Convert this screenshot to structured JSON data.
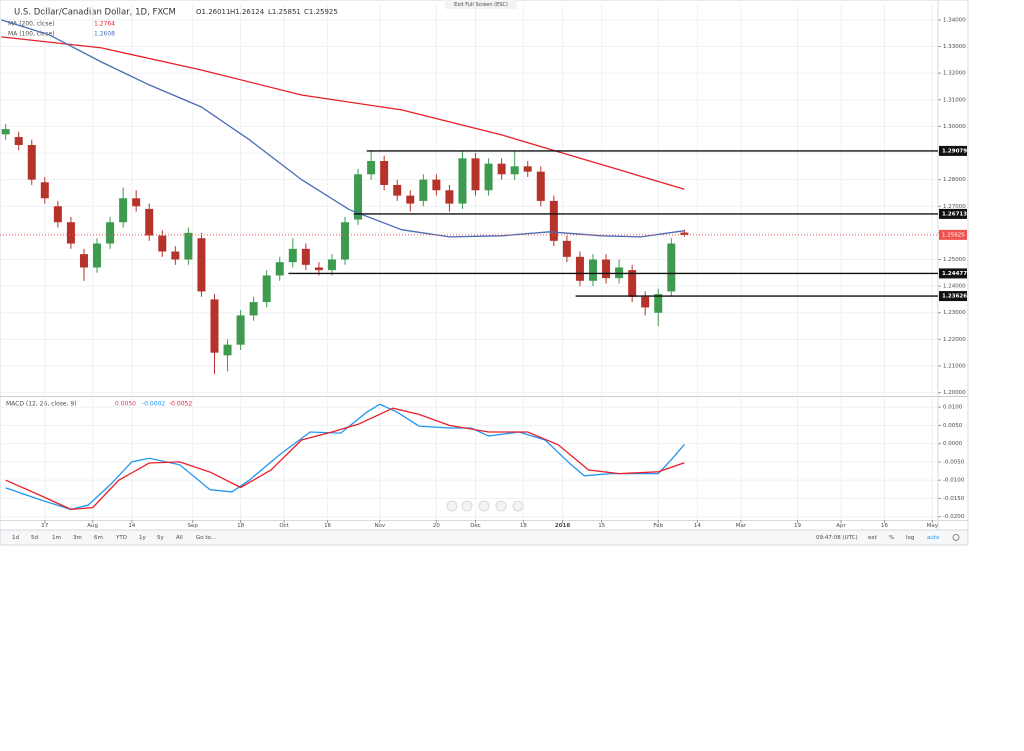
{
  "ui": {
    "exit_fullscreen": "Exit Full Screen (ESC)",
    "ranges": [
      "1d",
      "5d",
      "1m",
      "3m",
      "6m",
      "YTD",
      "1y",
      "5y",
      "All",
      "Go to..."
    ],
    "clock": "09:47:08 (UTC)",
    "toggles": [
      "ext",
      "%",
      "log",
      "auto"
    ]
  },
  "chart_data": [
    {
      "type": "candlestick",
      "title": "U.S. Dollar/Canadian Dollar, 1D, FXCM",
      "ohlc_labels": [
        "O1.26011",
        "H1.26124",
        "L1.25851",
        "C1.25925"
      ],
      "up_color": "#3d9a4f",
      "down_color": "#b5332a",
      "x": [
        -9,
        -6,
        -3,
        0,
        3,
        6,
        9,
        12,
        15,
        18,
        21,
        24,
        27,
        30,
        33,
        36,
        39,
        42,
        45,
        48,
        51,
        54,
        57,
        60,
        63,
        66,
        69,
        72,
        75,
        78,
        81,
        84,
        87,
        90,
        93,
        96,
        99,
        102,
        105,
        108,
        111,
        114,
        117,
        120,
        123,
        126,
        129,
        132,
        135,
        138,
        141,
        144,
        147
      ],
      "open": [
        1.297,
        1.296,
        1.293,
        1.279,
        1.27,
        1.264,
        1.252,
        1.247,
        1.256,
        1.264,
        1.273,
        1.269,
        1.259,
        1.253,
        1.25,
        1.258,
        1.235,
        1.214,
        1.218,
        1.229,
        1.234,
        1.244,
        1.249,
        1.254,
        1.247,
        1.246,
        1.25,
        1.265,
        1.282,
        1.287,
        1.278,
        1.274,
        1.272,
        1.28,
        1.276,
        1.271,
        1.288,
        1.276,
        1.286,
        1.282,
        1.285,
        1.283,
        1.272,
        1.257,
        1.251,
        1.242,
        1.25,
        1.243,
        1.246,
        1.236,
        1.23,
        1.238,
        1.26011
      ],
      "high": [
        1.301,
        1.298,
        1.295,
        1.281,
        1.272,
        1.266,
        1.254,
        1.258,
        1.266,
        1.277,
        1.276,
        1.271,
        1.261,
        1.255,
        1.262,
        1.26,
        1.237,
        1.22,
        1.231,
        1.236,
        1.246,
        1.251,
        1.258,
        1.256,
        1.249,
        1.252,
        1.266,
        1.284,
        1.291,
        1.289,
        1.28,
        1.276,
        1.282,
        1.282,
        1.278,
        1.291,
        1.29,
        1.288,
        1.288,
        1.291,
        1.287,
        1.285,
        1.274,
        1.259,
        1.253,
        1.252,
        1.252,
        1.25,
        1.248,
        1.238,
        1.239,
        1.258,
        1.26124
      ],
      "low": [
        1.295,
        1.291,
        1.278,
        1.271,
        1.262,
        1.254,
        1.242,
        1.245,
        1.254,
        1.262,
        1.268,
        1.257,
        1.251,
        1.248,
        1.248,
        1.236,
        1.207,
        1.208,
        1.216,
        1.227,
        1.232,
        1.242,
        1.247,
        1.246,
        1.244,
        1.244,
        1.248,
        1.263,
        1.28,
        1.276,
        1.272,
        1.268,
        1.27,
        1.274,
        1.268,
        1.269,
        1.274,
        1.274,
        1.28,
        1.28,
        1.281,
        1.27,
        1.255,
        1.249,
        1.24,
        1.24,
        1.241,
        1.241,
        1.234,
        1.229,
        1.225,
        1.236,
        1.25851
      ],
      "close": [
        1.299,
        1.293,
        1.28,
        1.273,
        1.264,
        1.256,
        1.247,
        1.256,
        1.264,
        1.273,
        1.27,
        1.259,
        1.253,
        1.25,
        1.26,
        1.238,
        1.215,
        1.218,
        1.229,
        1.234,
        1.244,
        1.249,
        1.254,
        1.248,
        1.246,
        1.25,
        1.264,
        1.282,
        1.287,
        1.278,
        1.274,
        1.271,
        1.28,
        1.276,
        1.271,
        1.288,
        1.276,
        1.286,
        1.282,
        1.285,
        1.283,
        1.272,
        1.257,
        1.251,
        1.242,
        1.25,
        1.243,
        1.247,
        1.236,
        1.232,
        1.237,
        1.256,
        1.25925
      ],
      "series": [
        {
          "name": "MA (200, close)",
          "color": "#e8202a",
          "last_value": 1.2764,
          "x": [
            -10,
            13,
            36,
            59,
            82,
            105,
            118,
            132,
            147
          ],
          "values": [
            1.3336,
            1.3295,
            1.3212,
            1.3118,
            1.3062,
            1.2968,
            1.2905,
            1.2837,
            1.2764
          ]
        },
        {
          "name": "MA (100, close)",
          "color": "#4a6bb5",
          "last_value": 1.2608,
          "x": [
            -10,
            1,
            13,
            24,
            36,
            47,
            59,
            70,
            82,
            93,
            105,
            116,
            128,
            137,
            147
          ],
          "values": [
            1.34,
            1.3344,
            1.3242,
            1.3156,
            1.3073,
            1.295,
            1.28,
            1.2687,
            1.2612,
            1.2585,
            1.2589,
            1.2604,
            1.2589,
            1.2585,
            1.2608
          ]
        }
      ],
      "levels": [
        {
          "value": 1.29079,
          "from": 74
        },
        {
          "value": 1.26713,
          "from": 71
        },
        {
          "value": 1.24477,
          "from": 56
        },
        {
          "value": 1.23626,
          "from": 122
        }
      ],
      "last_price": 1.25925,
      "last_price_color": "#ef5350",
      "xlim": [
        -10.3,
        205.3
      ],
      "ylim": [
        1.1991,
        1.3456
      ],
      "yticks": [
        {
          "value": 1.34,
          "label": "1.34000"
        },
        {
          "value": 1.33,
          "label": "1.33000"
        },
        {
          "value": 1.32,
          "label": "1.32000"
        },
        {
          "value": 1.31,
          "label": "1.31000"
        },
        {
          "value": 1.3,
          "label": "1.30000"
        },
        {
          "value": 1.29,
          "label": "1.29000"
        },
        {
          "value": 1.28,
          "label": "1.28000"
        },
        {
          "value": 1.27,
          "label": "1.27000"
        },
        {
          "value": 1.26,
          "label": "1.26000"
        },
        {
          "value": 1.25,
          "label": "1.25000"
        },
        {
          "value": 1.24,
          "label": "1.24000"
        },
        {
          "value": 1.23,
          "label": "1.23000"
        },
        {
          "value": 1.22,
          "label": "1.22000"
        },
        {
          "value": 1.21,
          "label": "1.21000"
        },
        {
          "value": 1.2,
          "label": "1.20000"
        }
      ],
      "grid": true
    },
    {
      "type": "line",
      "title": "MACD (12, 26, close, 9)",
      "readouts": [
        {
          "value": 0.005,
          "label": "0.0050",
          "color": "#d83c5c"
        },
        {
          "value": -0.0002,
          "label": "-0.0002",
          "color": "#2196f3"
        },
        {
          "value": -0.0052,
          "label": "-0.0052",
          "color": "#e8202a"
        }
      ],
      "series": [
        {
          "color": "#2196f3",
          "x": [
            -9,
            -1,
            6,
            10,
            15,
            20,
            24,
            31,
            38,
            43,
            47,
            54,
            61,
            68,
            74,
            77,
            81,
            86,
            93,
            98,
            102,
            109,
            115,
            121,
            124,
            130,
            137,
            141,
            144,
            147
          ],
          "values": [
            -0.0121,
            -0.0154,
            -0.018,
            -0.0168,
            -0.0113,
            -0.005,
            -0.004,
            -0.0058,
            -0.0126,
            -0.0132,
            -0.01,
            -0.003,
            0.0032,
            0.0029,
            0.0086,
            0.0108,
            0.0086,
            0.0048,
            0.0043,
            0.0043,
            0.0021,
            0.0032,
            0.001,
            -0.0058,
            -0.0088,
            -0.0082,
            -0.0082,
            -0.0082,
            -0.0044,
            -0.0002
          ]
        },
        {
          "color": "#e8202a",
          "x": [
            -9,
            -1,
            6,
            11,
            17,
            24,
            31,
            38,
            45,
            52,
            59,
            66,
            72,
            80,
            86,
            93,
            102,
            111,
            118,
            125,
            132,
            141,
            147
          ],
          "values": [
            -0.01,
            -0.0142,
            -0.018,
            -0.0175,
            -0.01,
            -0.0053,
            -0.005,
            -0.0078,
            -0.012,
            -0.0072,
            0.001,
            0.0032,
            0.0053,
            0.0097,
            0.008,
            0.005,
            0.0032,
            0.0032,
            -0.0003,
            -0.0072,
            -0.0082,
            -0.0077,
            -0.0052
          ]
        }
      ],
      "xlim": [
        -10.3,
        205.3
      ],
      "ylim": [
        -0.0209,
        0.0125
      ],
      "yticks": [
        {
          "value": 0.01,
          "label": "0.0100"
        },
        {
          "value": 0.005,
          "label": "0.0050"
        },
        {
          "value": 0,
          "label": "0.0000"
        },
        {
          "value": -0.005,
          "label": "-0.0050"
        },
        {
          "value": -0.01,
          "label": "-0.0100"
        },
        {
          "value": -0.015,
          "label": "-0.0150"
        },
        {
          "value": -0.02,
          "label": "-0.0200"
        }
      ],
      "xticks": [
        {
          "value": 0,
          "label": "17"
        },
        {
          "value": 11,
          "label": "Aug"
        },
        {
          "value": 20,
          "label": "14"
        },
        {
          "value": 34,
          "label": "Sep"
        },
        {
          "value": 45,
          "label": "18"
        },
        {
          "value": 55,
          "label": "Oct"
        },
        {
          "value": 65,
          "label": "16"
        },
        {
          "value": 77,
          "label": "Nov"
        },
        {
          "value": 90,
          "label": "20"
        },
        {
          "value": 99,
          "label": "Dec"
        },
        {
          "value": 110,
          "label": "18"
        },
        {
          "value": 119,
          "label": "2018"
        },
        {
          "value": 128,
          "label": "15"
        },
        {
          "value": 141,
          "label": "Feb"
        },
        {
          "value": 150,
          "label": "14"
        },
        {
          "value": 160,
          "label": "Mar"
        },
        {
          "value": 173,
          "label": "19"
        },
        {
          "value": 183,
          "label": "Apr"
        },
        {
          "value": 193,
          "label": "16"
        },
        {
          "value": 204,
          "label": "May"
        }
      ],
      "grid": true
    }
  ]
}
